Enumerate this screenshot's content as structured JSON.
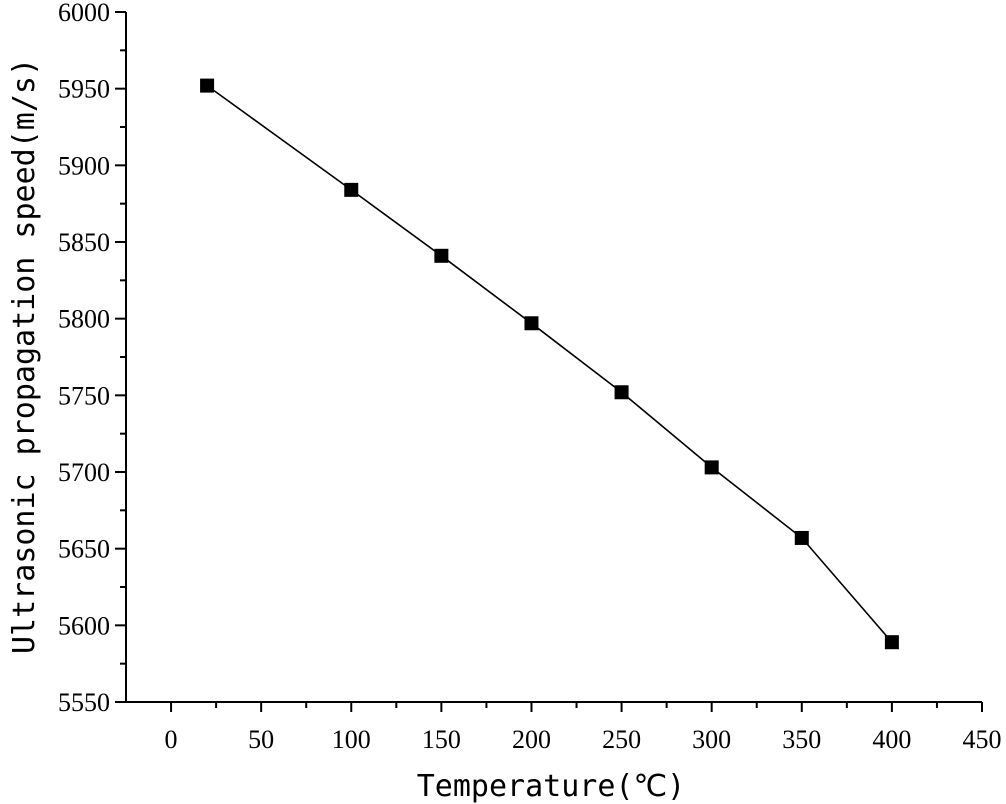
{
  "chart_data": {
    "type": "line",
    "title": "",
    "xlabel": "Temperature(℃)",
    "ylabel": "Ultrasonic propagation speed(m/s)",
    "xlim": [
      -25,
      450
    ],
    "ylim": [
      5550,
      6000
    ],
    "x_ticks": [
      0,
      50,
      100,
      150,
      200,
      250,
      300,
      350,
      400,
      450
    ],
    "y_ticks": [
      5550,
      5600,
      5650,
      5700,
      5750,
      5800,
      5850,
      5900,
      5950,
      6000
    ],
    "grid": false,
    "legend": "none",
    "marker": "square",
    "series": [
      {
        "x": [
          20,
          100,
          150,
          200,
          250,
          300,
          350,
          400
        ],
        "y": [
          5952,
          5884,
          5841,
          5797,
          5752,
          5703,
          5657,
          5589
        ]
      }
    ],
    "colors": {
      "line": "#000000",
      "marker": "#000000",
      "axis": "#000000"
    }
  }
}
